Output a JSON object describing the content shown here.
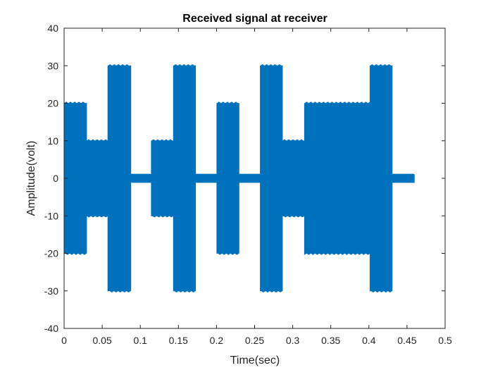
{
  "chart_data": {
    "type": "area",
    "title": "Received signal at receiver",
    "xlabel": "Time(sec)",
    "ylabel": "Amplitude(volt)",
    "xlim": [
      0,
      0.5
    ],
    "ylim": [
      -40,
      40
    ],
    "xticks": [
      0,
      0.05,
      0.1,
      0.15,
      0.2,
      0.25,
      0.3,
      0.35,
      0.4,
      0.45,
      0.5
    ],
    "xtick_labels": [
      "0",
      "0.05",
      "0.1",
      "0.15",
      "0.2",
      "0.25",
      "0.3",
      "0.35",
      "0.4",
      "0.45",
      "0.5"
    ],
    "yticks": [
      -40,
      -30,
      -20,
      -10,
      0,
      10,
      20,
      30,
      40
    ],
    "ytick_labels": [
      "-40",
      "-30",
      "-20",
      "-10",
      "0",
      "10",
      "20",
      "30",
      "40"
    ],
    "grid": false,
    "line_color": "#0072BD",
    "series": [
      {
        "segments": [
          {
            "x_start": 0.0,
            "x_end": 0.0295,
            "amplitude": 20
          },
          {
            "x_start": 0.0295,
            "x_end": 0.0575,
            "amplitude": 10
          },
          {
            "x_start": 0.0575,
            "x_end": 0.0875,
            "amplitude": 30
          },
          {
            "x_start": 0.0875,
            "x_end": 0.1145,
            "amplitude": 1
          },
          {
            "x_start": 0.1145,
            "x_end": 0.1435,
            "amplitude": 10
          },
          {
            "x_start": 0.1435,
            "x_end": 0.1725,
            "amplitude": 30
          },
          {
            "x_start": 0.1725,
            "x_end": 0.2005,
            "amplitude": 1
          },
          {
            "x_start": 0.2005,
            "x_end": 0.2295,
            "amplitude": 20
          },
          {
            "x_start": 0.2295,
            "x_end": 0.2575,
            "amplitude": 1
          },
          {
            "x_start": 0.2575,
            "x_end": 0.2865,
            "amplitude": 30
          },
          {
            "x_start": 0.2865,
            "x_end": 0.3155,
            "amplitude": 10
          },
          {
            "x_start": 0.3155,
            "x_end": 0.4015,
            "amplitude": 20
          },
          {
            "x_start": 0.4015,
            "x_end": 0.4305,
            "amplitude": 30
          },
          {
            "x_start": 0.4305,
            "x_end": 0.4595,
            "amplitude": 1
          }
        ]
      }
    ]
  }
}
